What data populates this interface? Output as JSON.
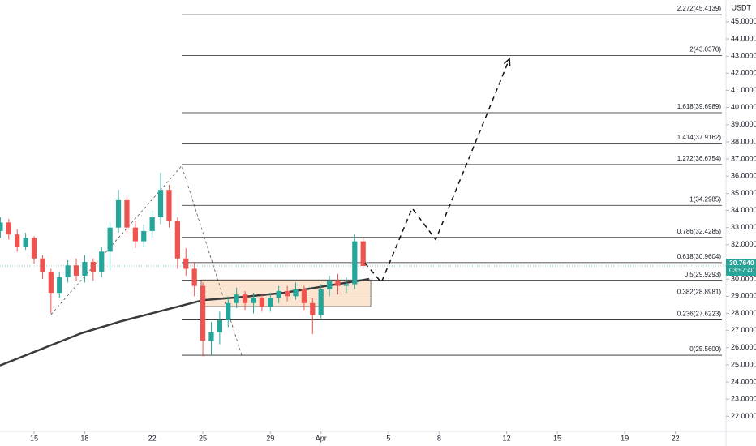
{
  "chart_data": {
    "type": "candlestick",
    "currency": "USDT",
    "xlim": [
      12.98,
      56.0
    ],
    "ylim": [
      21.12,
      46.27
    ],
    "xticks": [
      15,
      18,
      22,
      25,
      29,
      {
        "value": 32,
        "label": "Apr"
      },
      {
        "value": 36,
        "label": "5"
      },
      {
        "value": 39,
        "label": "8"
      },
      {
        "value": 43,
        "label": "12"
      },
      {
        "value": 46,
        "label": "15"
      },
      {
        "value": 50,
        "label": "19"
      },
      {
        "value": 53,
        "label": "22"
      }
    ],
    "yticks": [
      {
        "value": 22,
        "label": "22.0000"
      },
      {
        "value": 23,
        "label": "23.0000"
      },
      {
        "value": 24,
        "label": "24.0000"
      },
      {
        "value": 25,
        "label": "25.0000"
      },
      {
        "value": 26,
        "label": "26.0000"
      },
      {
        "value": 27,
        "label": "27.0000"
      },
      {
        "value": 28,
        "label": "28.0000"
      },
      {
        "value": 29,
        "label": "29.0000"
      },
      {
        "value": 30,
        "label": "30.0000"
      },
      {
        "value": 31,
        "label": "31.0000"
      },
      {
        "value": 32,
        "label": "32.0000"
      },
      {
        "value": 33,
        "label": "33.0000"
      },
      {
        "value": 34,
        "label": "34.0000"
      },
      {
        "value": 35,
        "label": "35.0000"
      },
      {
        "value": 36,
        "label": "36.0000"
      },
      {
        "value": 37,
        "label": "37.0000"
      },
      {
        "value": 38,
        "label": "38.0000"
      },
      {
        "value": 39,
        "label": "39.0000"
      },
      {
        "value": 40,
        "label": "40.0000"
      },
      {
        "value": 41,
        "label": "41.0000"
      },
      {
        "value": 42,
        "label": "42.0000"
      },
      {
        "value": 43,
        "label": "43.0000"
      },
      {
        "value": 44,
        "label": "44.0000"
      },
      {
        "value": 45,
        "label": "45.0000"
      }
    ],
    "up_color": "#26a69a",
    "down_color": "#ef5350",
    "candles": {
      "x": [
        13,
        13.5,
        14,
        14.5,
        15,
        15.5,
        16,
        16.5,
        17,
        17.5,
        18,
        18.5,
        19,
        19.5,
        20,
        20.5,
        21,
        21.5,
        22,
        22.5,
        23,
        23.5,
        24,
        24.5,
        25,
        25.5,
        26,
        26.5,
        27,
        27.5,
        28,
        28.5,
        29,
        29.5,
        30,
        30.5,
        31,
        31.5,
        32,
        32.5,
        33,
        33.5,
        34,
        34.5
      ],
      "open": [
        32.8,
        33.3,
        32.6,
        31.9,
        32.4,
        31.2,
        30.4,
        29.2,
        30.1,
        30.8,
        30.2,
        31.0,
        30.4,
        31.6,
        33.0,
        34.6,
        33.0,
        32.2,
        32.8,
        33.6,
        35.2,
        33.4,
        31.2,
        30.6,
        29.6,
        26.4,
        26.9,
        27.6,
        28.6,
        29.1,
        28.6,
        28.9,
        28.4,
        28.9,
        29.3,
        29.0,
        29.4,
        28.6,
        27.9,
        29.4,
        29.9,
        29.6,
        29.7,
        32.2
      ],
      "high": [
        33.6,
        33.5,
        32.9,
        32.7,
        32.5,
        31.4,
        30.6,
        30.4,
        31.1,
        31.2,
        31.4,
        31.2,
        31.9,
        33.3,
        35.2,
        34.9,
        33.4,
        33.2,
        34.0,
        36.2,
        35.5,
        33.6,
        31.8,
        31.0,
        29.8,
        27.5,
        28.1,
        29.0,
        29.5,
        29.3,
        29.2,
        29.1,
        29.2,
        29.6,
        29.6,
        29.8,
        29.6,
        28.9,
        29.7,
        30.2,
        30.3,
        30.1,
        32.6,
        32.4
      ],
      "low": [
        32.4,
        32.3,
        31.6,
        31.7,
        30.9,
        30.0,
        28.0,
        28.9,
        29.8,
        29.9,
        29.8,
        29.9,
        30.1,
        30.5,
        32.7,
        32.6,
        31.8,
        31.9,
        32.4,
        33.2,
        33.0,
        30.6,
        30.2,
        29.0,
        25.5,
        25.6,
        26.2,
        27.2,
        28.3,
        28.2,
        28.0,
        28.1,
        28.1,
        28.6,
        28.7,
        28.8,
        28.2,
        26.8,
        27.7,
        29.0,
        29.1,
        29.2,
        29.4,
        30.6
      ],
      "close": [
        33.3,
        32.6,
        31.9,
        32.4,
        31.2,
        30.4,
        29.2,
        30.1,
        30.8,
        30.2,
        31.0,
        30.4,
        31.6,
        33.0,
        34.6,
        33.0,
        32.2,
        32.8,
        33.6,
        35.2,
        33.4,
        31.2,
        30.6,
        29.6,
        26.4,
        26.9,
        27.6,
        28.6,
        29.1,
        28.6,
        28.9,
        28.4,
        28.9,
        29.3,
        29.0,
        29.4,
        28.6,
        27.9,
        29.4,
        29.9,
        29.6,
        29.7,
        32.2,
        30.764
      ]
    },
    "moving_average": {
      "color": "#3a3a3a",
      "x": [
        12.98,
        17.79,
        20.19,
        22.6,
        25.0,
        27.4,
        29.8,
        32.21,
        34.86
      ],
      "values": [
        24.96,
        26.84,
        27.55,
        28.16,
        28.77,
        28.96,
        29.2,
        29.58,
        30.0
      ]
    },
    "zone": {
      "x": [
        24.9,
        34.95
      ],
      "y": [
        28.4,
        29.95
      ]
    },
    "wave_line": {
      "x": [
        16.0,
        23.75,
        27.3
      ],
      "values": [
        27.93,
        36.6,
        25.57
      ]
    },
    "projection": {
      "x": [
        34.6,
        35.58,
        37.4,
        38.8,
        43.17
      ],
      "values": [
        30.94,
        29.81,
        34.13,
        32.3,
        42.84
      ]
    },
    "fib_start": 23.75,
    "fib_levels": [
      {
        "value": 25.56,
        "label": "0(25.5600)"
      },
      {
        "value": 27.6223,
        "label": "0.236(27.6223)"
      },
      {
        "value": 28.8981,
        "label": "0.382(28.8981)"
      },
      {
        "value": 29.9293,
        "label": "0.5(29.9293)"
      },
      {
        "value": 30.9604,
        "label": "0.618(30.9604)"
      },
      {
        "value": 32.4285,
        "label": "0.786(32.4285)"
      },
      {
        "value": 34.2985,
        "label": "1(34.2985)"
      },
      {
        "value": 36.6754,
        "label": "1.272(36.6754)"
      },
      {
        "value": 37.9162,
        "label": "1.414(37.9162)"
      },
      {
        "value": 39.6989,
        "label": "1.618(39.6989)"
      },
      {
        "value": 43.037,
        "label": "2(43.0370)"
      },
      {
        "value": 45.4139,
        "label": "2.272(45.4139)"
      }
    ],
    "last_price": {
      "value": 30.764,
      "label": "30.7640",
      "countdown": "03:57:40",
      "color": "#26a69a"
    }
  }
}
